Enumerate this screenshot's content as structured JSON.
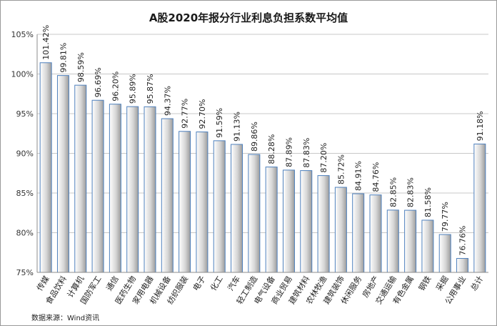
{
  "chart_data": {
    "type": "bar",
    "title": "A股2020年报分行业利息负担系数平均值",
    "source": "数据来源：Wind资讯",
    "ylim": [
      75,
      105
    ],
    "yticks": [
      75,
      80,
      85,
      90,
      95,
      100,
      105
    ],
    "ytick_labels": [
      "75%",
      "80%",
      "85%",
      "90%",
      "95%",
      "100%",
      "105%"
    ],
    "grid": true,
    "categories": [
      "传媒",
      "食品饮料",
      "计算机",
      "国防军工",
      "通信",
      "医药生物",
      "家用电器",
      "机械设备",
      "纺织服装",
      "电子",
      "化工",
      "汽车",
      "轻工制造",
      "电气设备",
      "商业贸易",
      "建筑材料",
      "农林牧渔",
      "建筑装饰",
      "休闲服务",
      "房地产",
      "交通运输",
      "有色金属",
      "钢铁",
      "采掘",
      "公用事业",
      "总计"
    ],
    "values": [
      101.42,
      99.81,
      98.59,
      96.69,
      96.2,
      95.89,
      95.87,
      94.37,
      92.77,
      92.7,
      91.59,
      91.13,
      89.86,
      88.28,
      87.89,
      87.83,
      87.2,
      85.72,
      84.91,
      84.76,
      82.85,
      82.83,
      81.58,
      79.77,
      76.76,
      91.18
    ],
    "value_labels": [
      "101.42%",
      "99.81%",
      "98.59%",
      "96.69%",
      "96.20%",
      "95.89%",
      "95.87%",
      "94.37%",
      "92.77%",
      "92.70%",
      "91.59%",
      "91.13%",
      "89.86%",
      "88.28%",
      "87.89%",
      "87.83%",
      "87.20%",
      "85.72%",
      "84.91%",
      "84.76%",
      "82.85%",
      "82.83%",
      "81.58%",
      "79.77%",
      "76.76%",
      "91.18%"
    ],
    "colors": {
      "bar_border": "#4f81bd",
      "bar_light": "#ffffff",
      "bar_dark": "#9c9c9c",
      "grid": "#c8c8c8",
      "axis": "#8c8c8c"
    }
  }
}
